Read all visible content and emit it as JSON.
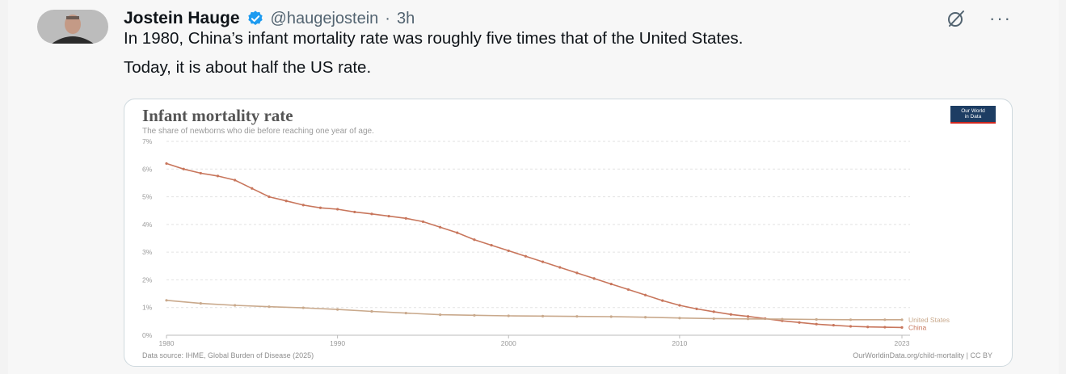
{
  "tweet": {
    "author_name": "Jostein Hauge",
    "handle": "@haugejostein",
    "separator": "·",
    "time": "3h",
    "more": "···",
    "text_p1": "In 1980, China’s infant mortality rate was roughly five times that of the United States.",
    "text_p2": "Today, it is about half the US rate.",
    "verified_color": "#1d9bf0"
  },
  "card": {
    "logo_line1": "Our World",
    "logo_line2": "in Data",
    "footer_source": "Data source: IHME, Global Burden of Disease (2025)",
    "footer_url": "OurWorldinData.org/child-mortality | CC BY"
  },
  "chart_data": {
    "type": "line",
    "title": "Infant mortality rate",
    "subtitle": "The share of newborns who die before reaching one year of age.",
    "xlabel": "",
    "ylabel": "",
    "xlim": [
      1980,
      2023
    ],
    "ylim": [
      0,
      7
    ],
    "y_ticks": [
      {
        "value": 0,
        "label": "0%"
      },
      {
        "value": 1,
        "label": "1%"
      },
      {
        "value": 2,
        "label": "2%"
      },
      {
        "value": 3,
        "label": "3%"
      },
      {
        "value": 4,
        "label": "4%"
      },
      {
        "value": 5,
        "label": "5%"
      },
      {
        "value": 6,
        "label": "6%"
      },
      {
        "value": 7,
        "label": "7%"
      }
    ],
    "x_ticks": [
      {
        "value": 1980,
        "label": "1980"
      },
      {
        "value": 1990,
        "label": "1990"
      },
      {
        "value": 2000,
        "label": "2000"
      },
      {
        "value": 2010,
        "label": "2010"
      },
      {
        "value": 2023,
        "label": "2023"
      }
    ],
    "grid": "horizontal-dashed",
    "legend": "end-of-line labels",
    "series": [
      {
        "name": "China",
        "color": "#c8765c",
        "points": [
          [
            1980,
            6.2
          ],
          [
            1981,
            6.0
          ],
          [
            1982,
            5.85
          ],
          [
            1983,
            5.75
          ],
          [
            1984,
            5.6
          ],
          [
            1985,
            5.3
          ],
          [
            1986,
            5.0
          ],
          [
            1987,
            4.85
          ],
          [
            1988,
            4.7
          ],
          [
            1989,
            4.6
          ],
          [
            1990,
            4.55
          ],
          [
            1991,
            4.45
          ],
          [
            1992,
            4.38
          ],
          [
            1993,
            4.3
          ],
          [
            1994,
            4.22
          ],
          [
            1995,
            4.1
          ],
          [
            1996,
            3.9
          ],
          [
            1997,
            3.7
          ],
          [
            1998,
            3.45
          ],
          [
            1999,
            3.25
          ],
          [
            2000,
            3.05
          ],
          [
            2001,
            2.85
          ],
          [
            2002,
            2.65
          ],
          [
            2003,
            2.45
          ],
          [
            2004,
            2.25
          ],
          [
            2005,
            2.05
          ],
          [
            2006,
            1.85
          ],
          [
            2007,
            1.65
          ],
          [
            2008,
            1.45
          ],
          [
            2009,
            1.25
          ],
          [
            2010,
            1.08
          ],
          [
            2011,
            0.95
          ],
          [
            2012,
            0.85
          ],
          [
            2013,
            0.75
          ],
          [
            2014,
            0.68
          ],
          [
            2015,
            0.6
          ],
          [
            2016,
            0.52
          ],
          [
            2017,
            0.46
          ],
          [
            2018,
            0.4
          ],
          [
            2019,
            0.36
          ],
          [
            2020,
            0.32
          ],
          [
            2021,
            0.3
          ],
          [
            2022,
            0.29
          ],
          [
            2023,
            0.28
          ]
        ]
      },
      {
        "name": "United States",
        "color": "#c9a98c",
        "points": [
          [
            1980,
            1.26
          ],
          [
            1982,
            1.15
          ],
          [
            1984,
            1.08
          ],
          [
            1986,
            1.03
          ],
          [
            1988,
            0.99
          ],
          [
            1990,
            0.93
          ],
          [
            1992,
            0.86
          ],
          [
            1994,
            0.8
          ],
          [
            1996,
            0.74
          ],
          [
            1998,
            0.72
          ],
          [
            2000,
            0.7
          ],
          [
            2002,
            0.69
          ],
          [
            2004,
            0.68
          ],
          [
            2006,
            0.67
          ],
          [
            2008,
            0.65
          ],
          [
            2010,
            0.62
          ],
          [
            2012,
            0.6
          ],
          [
            2014,
            0.59
          ],
          [
            2016,
            0.58
          ],
          [
            2018,
            0.57
          ],
          [
            2020,
            0.56
          ],
          [
            2022,
            0.56
          ],
          [
            2023,
            0.56
          ]
        ]
      }
    ]
  }
}
